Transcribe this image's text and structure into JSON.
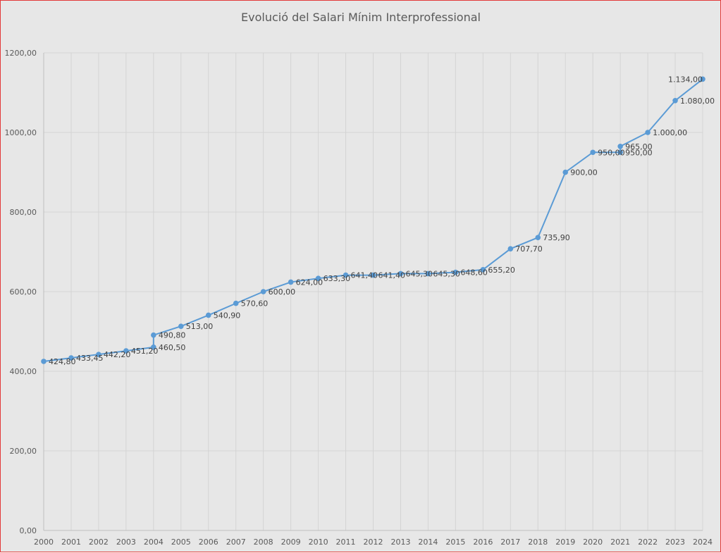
{
  "chart_data": {
    "type": "line",
    "title": "Evolució del Salari Mínim Interprofessional",
    "xlabel": "",
    "ylabel": "",
    "ylim": [
      0,
      1200
    ],
    "yticks": [
      "0,00",
      "200,00",
      "400,00",
      "600,00",
      "800,00",
      "1000,00",
      "1200,00"
    ],
    "ytick_values": [
      0,
      200,
      400,
      600,
      800,
      1000,
      1200
    ],
    "xlim": [
      2000,
      2024
    ],
    "xticks": [
      "2000",
      "2001",
      "2002",
      "2003",
      "2004",
      "2005",
      "2006",
      "2007",
      "2008",
      "2009",
      "2010",
      "2011",
      "2012",
      "2013",
      "2014",
      "2015",
      "2016",
      "2017",
      "2018",
      "2019",
      "2020",
      "2021",
      "2022",
      "2023",
      "2024"
    ],
    "grid": true,
    "legend": "none",
    "colors": {
      "series": "#5b9bd5",
      "background": "#e7e7e7",
      "border": "#e23a3a"
    },
    "series": [
      {
        "points": [
          {
            "x": 2000,
            "y": 424.8,
            "label": "424,80"
          },
          {
            "x": 2001,
            "y": 433.45,
            "label": "433,45"
          },
          {
            "x": 2002,
            "y": 442.2,
            "label": "442,20"
          },
          {
            "x": 2003,
            "y": 451.2,
            "label": "451,20"
          },
          {
            "x": 2004,
            "y": 460.5,
            "label": "460,50"
          },
          {
            "x": 2004,
            "y": 490.8,
            "label": "490,80"
          },
          {
            "x": 2005,
            "y": 513.0,
            "label": "513,00"
          },
          {
            "x": 2006,
            "y": 540.9,
            "label": "540,90"
          },
          {
            "x": 2007,
            "y": 570.6,
            "label": "570,60"
          },
          {
            "x": 2008,
            "y": 600.0,
            "label": "600,00"
          },
          {
            "x": 2009,
            "y": 624.0,
            "label": "624,00"
          },
          {
            "x": 2010,
            "y": 633.3,
            "label": "633,30"
          },
          {
            "x": 2011,
            "y": 641.4,
            "label": "641,40"
          },
          {
            "x": 2012,
            "y": 641.4,
            "label": "641,40"
          },
          {
            "x": 2013,
            "y": 645.3,
            "label": "645,30"
          },
          {
            "x": 2014,
            "y": 645.3,
            "label": "645,30"
          },
          {
            "x": 2015,
            "y": 648.6,
            "label": "648,60"
          },
          {
            "x": 2016,
            "y": 655.2,
            "label": "655,20"
          },
          {
            "x": 2017,
            "y": 707.7,
            "label": "707,70"
          },
          {
            "x": 2018,
            "y": 735.9,
            "label": "735,90"
          },
          {
            "x": 2019,
            "y": 900.0,
            "label": "900,00"
          },
          {
            "x": 2020,
            "y": 950.0,
            "label": "950,00"
          },
          {
            "x": 2021,
            "y": 950.0,
            "label": "950,00"
          },
          {
            "x": 2021,
            "y": 965.0,
            "label": "965,00"
          },
          {
            "x": 2022,
            "y": 1000.0,
            "label": "1.000,00"
          },
          {
            "x": 2023,
            "y": 1080.0,
            "label": "1.080,00"
          },
          {
            "x": 2024,
            "y": 1134.0,
            "label": "1.134,00"
          }
        ]
      }
    ]
  }
}
